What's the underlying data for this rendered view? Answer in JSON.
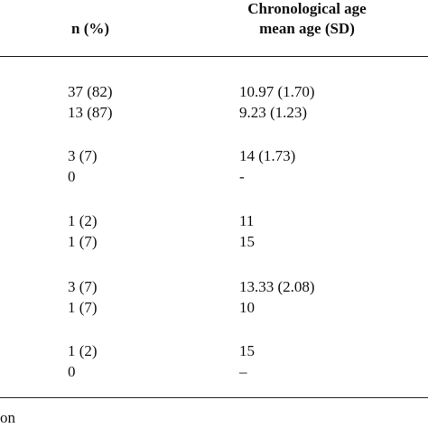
{
  "table": {
    "header": {
      "count": "n (%)",
      "age": [
        "Chronological age",
        "mean age (SD)"
      ]
    },
    "rows": [
      [
        "37 (82)",
        "10.97 (1.70)"
      ],
      [
        "13 (87)",
        "9.23 (1.23)"
      ],
      [
        "3 (7)",
        "14 (1.73)"
      ],
      [
        "0",
        "-"
      ],
      [
        "1 (2)",
        "11"
      ],
      [
        "1 (7)",
        "15"
      ],
      [
        "3 (7)",
        "13.33 (2.08)"
      ],
      [
        "1 (7)",
        "10"
      ],
      [
        "1 (2)",
        "15"
      ],
      [
        "0",
        "–"
      ]
    ],
    "footer": "on"
  }
}
